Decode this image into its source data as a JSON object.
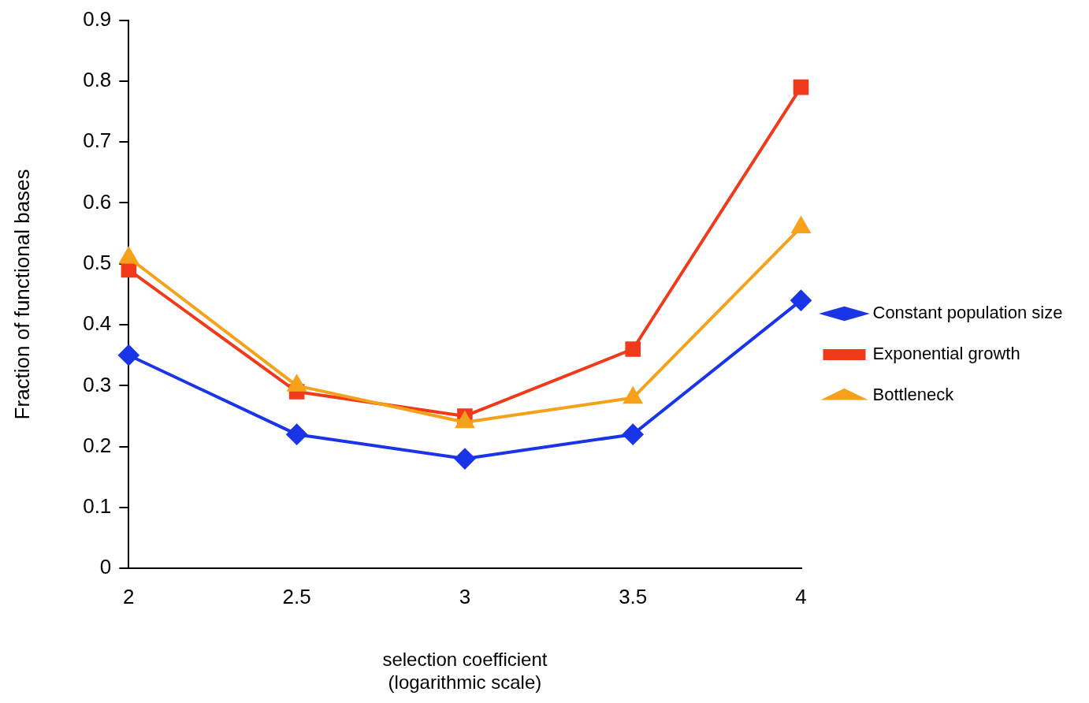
{
  "chart_data": {
    "type": "line",
    "xlabel": "selection coefficient\n(logarithmic scale)",
    "ylabel": "Fraction of functional bases",
    "x": [
      2,
      2.5,
      3,
      3.5,
      4
    ],
    "series": [
      {
        "name": "Constant population size",
        "color": "#1a35e8",
        "marker": "diamond",
        "values": [
          0.35,
          0.22,
          0.18,
          0.22,
          0.44
        ]
      },
      {
        "name": "Exponential growth",
        "color": "#f03a1a",
        "marker": "square",
        "values": [
          0.49,
          0.29,
          0.25,
          0.36,
          0.79
        ]
      },
      {
        "name": "Bottleneck",
        "color": "#f5a21a",
        "marker": "triangle",
        "values": [
          0.51,
          0.3,
          0.24,
          0.28,
          0.56
        ]
      }
    ],
    "xlim": [
      2,
      4
    ],
    "xticks": [
      2,
      2.5,
      3,
      3.5,
      4
    ],
    "ylim": [
      0,
      0.9
    ],
    "yticks": [
      0,
      0.1,
      0.2,
      0.3,
      0.4,
      0.5,
      0.6,
      0.7,
      0.8,
      0.9
    ],
    "grid": false,
    "legend": "right",
    "line_style": "solid"
  }
}
